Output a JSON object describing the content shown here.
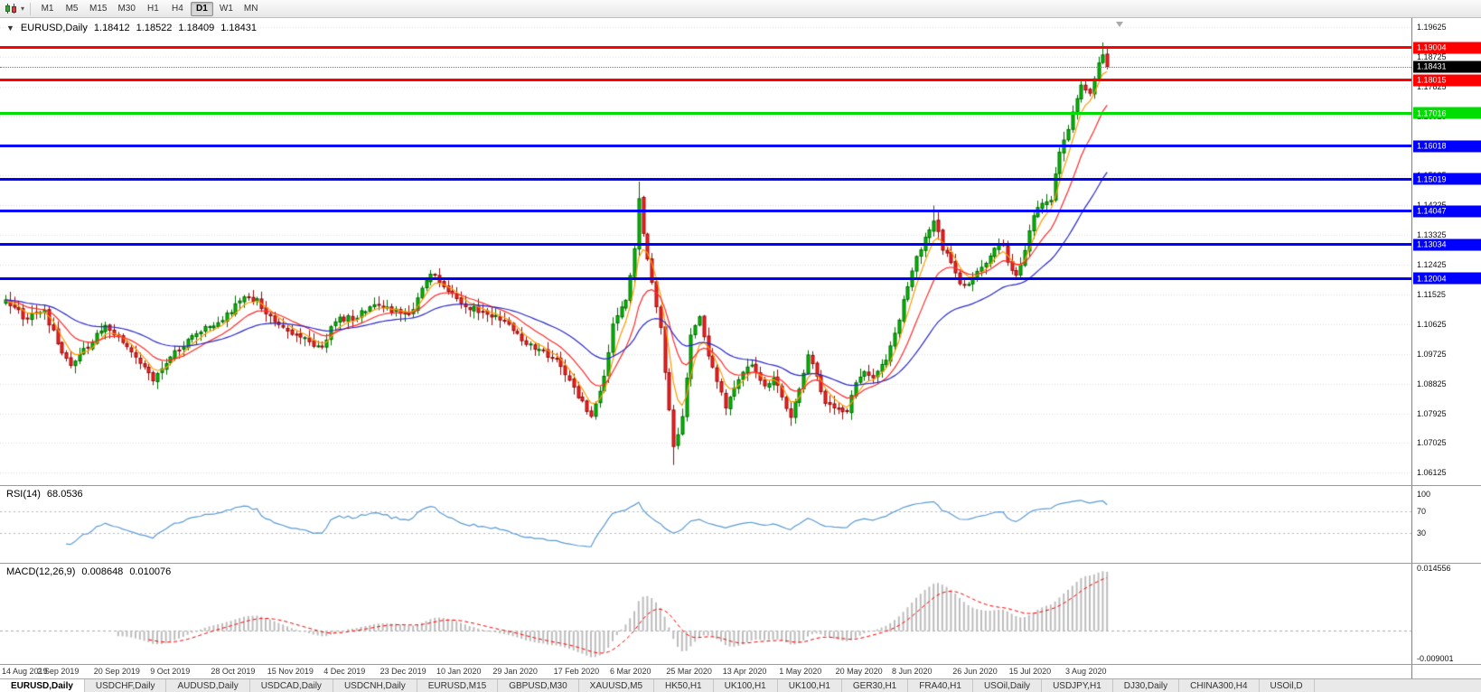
{
  "toolbar": {
    "timeframes": [
      "M1",
      "M5",
      "M15",
      "M30",
      "H1",
      "H4",
      "D1",
      "W1",
      "MN"
    ],
    "active_timeframe": "D1"
  },
  "header": {
    "collapse_arrow": "▼",
    "symbol": "EURUSD,Daily",
    "open": "1.18412",
    "high": "1.18522",
    "low": "1.18409",
    "close": "1.18431"
  },
  "price_scale": {
    "labels": [
      "1.19625",
      "1.18725",
      "1.17825",
      "1.16925",
      "1.16025",
      "1.15125",
      "1.14225",
      "1.13325",
      "1.12425",
      "1.11525",
      "1.10625",
      "1.09725",
      "1.08825",
      "1.07925",
      "1.07025",
      "1.06125"
    ],
    "values": [
      1.19625,
      1.18725,
      1.17825,
      1.16925,
      1.16025,
      1.15125,
      1.14225,
      1.13325,
      1.12425,
      1.11525,
      1.10625,
      1.09725,
      1.08825,
      1.07925,
      1.07025,
      1.06125
    ]
  },
  "current_price": {
    "label": "1.18431",
    "value": 1.18431,
    "box_color": "#000000",
    "text_color": "#ffffff"
  },
  "rsi_panel": {
    "name": "RSI(14)",
    "value": "68.0536",
    "levels": [
      {
        "value": 100,
        "label": "100"
      },
      {
        "value": 70,
        "label": "70"
      },
      {
        "value": 30,
        "label": "30"
      }
    ],
    "line_color": "#5b9bd5"
  },
  "macd_panel": {
    "name": "MACD(12,26,9)",
    "macd_value": "0.008648",
    "signal_value": "0.010076",
    "scale_top": "0.014556",
    "scale_bottom": "-0.009001",
    "hist_color": "#bdbdbd",
    "signal_color": "#ff0000"
  },
  "x_axis": {
    "labels": [
      "14 Aug 2019",
      "2 Sep 2019",
      "20 Sep 2019",
      "9 Oct 2019",
      "28 Oct 2019",
      "15 Nov 2019",
      "4 Dec 2019",
      "23 Dec 2019",
      "10 Jan 2020",
      "29 Jan 2020",
      "17 Feb 2020",
      "6 Mar 2020",
      "25 Mar 2020",
      "13 Apr 2020",
      "1 May 2020",
      "20 May 2020",
      "8 Jun 2020",
      "26 Jun 2020",
      "15 Jul 2020",
      "3 Aug 2020"
    ],
    "tick_indices": [
      0,
      13,
      26,
      39,
      53,
      66,
      79,
      92,
      105,
      118,
      132,
      145,
      158,
      171,
      184,
      197,
      210,
      224,
      237,
      250
    ]
  },
  "tabs": {
    "active_index": 0,
    "items": [
      "EURUSD,Daily",
      "USDCHF,Daily",
      "AUDUSD,Daily",
      "USDCAD,Daily",
      "USDCNH,Daily",
      "EURUSD,M15",
      "GBPUSD,M30",
      "XAUUSD,M5",
      "HK50,H1",
      "UK100,H1",
      "UK100,H1",
      "GER30,H1",
      "FRA40,H1",
      "USOil,Daily",
      "USDJPY,H1",
      "DJ30,Daily",
      "CHINA300,H4",
      "USOil,D"
    ]
  },
  "chart_data": {
    "type": "candlestick",
    "symbol": "EURUSD",
    "timeframe": "Daily",
    "title": "EURUSD,Daily 1.18412 1.18522 1.18409 1.18431",
    "price_min_visible": 1.0575,
    "price_max_visible": 1.199,
    "num_candles": 255,
    "seed": 12,
    "up_color": "#00c000",
    "up_border": "#006800",
    "down_color": "#ff2020",
    "down_border": "#8f0c0c",
    "anchors": [
      [
        0,
        1.114
      ],
      [
        4,
        1.1085
      ],
      [
        9,
        1.11
      ],
      [
        13,
        1.0975
      ],
      [
        15,
        1.0935
      ],
      [
        19,
        1.0995
      ],
      [
        23,
        1.106
      ],
      [
        27,
        1.1015
      ],
      [
        31,
        1.095
      ],
      [
        34,
        1.0895
      ],
      [
        38,
        1.0965
      ],
      [
        44,
        1.104
      ],
      [
        50,
        1.1075
      ],
      [
        55,
        1.115
      ],
      [
        58,
        1.1135
      ],
      [
        62,
        1.107
      ],
      [
        66,
        1.104
      ],
      [
        70,
        1.1005
      ],
      [
        73,
        1.099
      ],
      [
        76,
        1.1075
      ],
      [
        81,
        1.1085
      ],
      [
        85,
        1.1125
      ],
      [
        89,
        1.1105
      ],
      [
        93,
        1.1085
      ],
      [
        97,
        1.12
      ],
      [
        99,
        1.1215
      ],
      [
        102,
        1.116
      ],
      [
        106,
        1.112
      ],
      [
        111,
        1.1095
      ],
      [
        115,
        1.1075
      ],
      [
        119,
        1.1015
      ],
      [
        124,
        1.098
      ],
      [
        128,
        1.094
      ],
      [
        132,
        1.084
      ],
      [
        135,
        1.079
      ],
      [
        138,
        1.0905
      ],
      [
        140,
        1.106
      ],
      [
        143,
        1.1135
      ],
      [
        145,
        1.13
      ],
      [
        146,
        1.144
      ],
      [
        147,
        1.134
      ],
      [
        149,
        1.1185
      ],
      [
        151,
        1.106
      ],
      [
        152,
        1.092
      ],
      [
        154,
        1.069
      ],
      [
        155,
        1.0735
      ],
      [
        156,
        1.079
      ],
      [
        157,
        1.09
      ],
      [
        158,
        1.103
      ],
      [
        160,
        1.108
      ],
      [
        162,
        1.0965
      ],
      [
        164,
        1.0895
      ],
      [
        166,
        1.0805
      ],
      [
        168,
        1.087
      ],
      [
        170,
        1.0925
      ],
      [
        172,
        1.0945
      ],
      [
        175,
        1.087
      ],
      [
        177,
        1.0895
      ],
      [
        179,
        1.0845
      ],
      [
        181,
        1.0775
      ],
      [
        183,
        1.087
      ],
      [
        185,
        1.0975
      ],
      [
        187,
        1.0905
      ],
      [
        189,
        1.0825
      ],
      [
        192,
        1.08
      ],
      [
        194,
        1.0795
      ],
      [
        196,
        1.0885
      ],
      [
        198,
        1.092
      ],
      [
        200,
        1.0895
      ],
      [
        203,
        1.096
      ],
      [
        206,
        1.108
      ],
      [
        209,
        1.123
      ],
      [
        211,
        1.129
      ],
      [
        213,
        1.1345
      ],
      [
        214,
        1.1375
      ],
      [
        216,
        1.1295
      ],
      [
        218,
        1.125
      ],
      [
        220,
        1.119
      ],
      [
        222,
        1.1175
      ],
      [
        224,
        1.1225
      ],
      [
        226,
        1.1255
      ],
      [
        228,
        1.13
      ],
      [
        230,
        1.131
      ],
      [
        231,
        1.1245
      ],
      [
        233,
        1.1205
      ],
      [
        235,
        1.1285
      ],
      [
        237,
        1.14
      ],
      [
        239,
        1.1425
      ],
      [
        241,
        1.1445
      ],
      [
        243,
        1.158
      ],
      [
        245,
        1.1655
      ],
      [
        246,
        1.17
      ],
      [
        247,
        1.1745
      ],
      [
        248,
        1.1785
      ],
      [
        249,
        1.177
      ],
      [
        250,
        1.1765
      ],
      [
        251,
        1.1805
      ],
      [
        252,
        1.1855
      ],
      [
        253,
        1.188
      ],
      [
        254,
        1.18431
      ]
    ],
    "spikes": [
      [
        135,
        "l",
        1.0778
      ],
      [
        146,
        "h",
        1.1495
      ],
      [
        154,
        "l",
        1.0636
      ],
      [
        214,
        "h",
        1.1422
      ],
      [
        253,
        "h",
        1.1916
      ]
    ],
    "moving_averages": [
      {
        "period": 5,
        "color": "#ff9900"
      },
      {
        "period": 13,
        "color": "#ff2a2a"
      },
      {
        "period": 34,
        "color": "#2929cc"
      }
    ],
    "hlines": [
      {
        "price": 1.19004,
        "label": "1.19004",
        "color": "#ff0000",
        "thickness": 3
      },
      {
        "price": 1.18015,
        "label": "1.18015",
        "color": "#ff0000",
        "thickness": 3
      },
      {
        "price": 1.17016,
        "label": "1.17016",
        "color": "#00dd00",
        "thickness": 3
      },
      {
        "price": 1.16018,
        "label": "1.16018",
        "color": "#0000ff",
        "thickness": 3
      },
      {
        "price": 1.15019,
        "label": "1.15019",
        "color": "#0000ff",
        "thickness": 3
      },
      {
        "price": 1.14047,
        "label": "1.14047",
        "color": "#0000ff",
        "thickness": 3
      },
      {
        "price": 1.13034,
        "label": "1.13034",
        "color": "#0000ff",
        "thickness": 3
      },
      {
        "price": 1.12004,
        "label": "1.12004",
        "color": "#0000ff",
        "thickness": 3
      }
    ],
    "indicators": {
      "rsi_period": 14,
      "macd_fast": 12,
      "macd_slow": 26,
      "macd_signal": 9
    }
  }
}
